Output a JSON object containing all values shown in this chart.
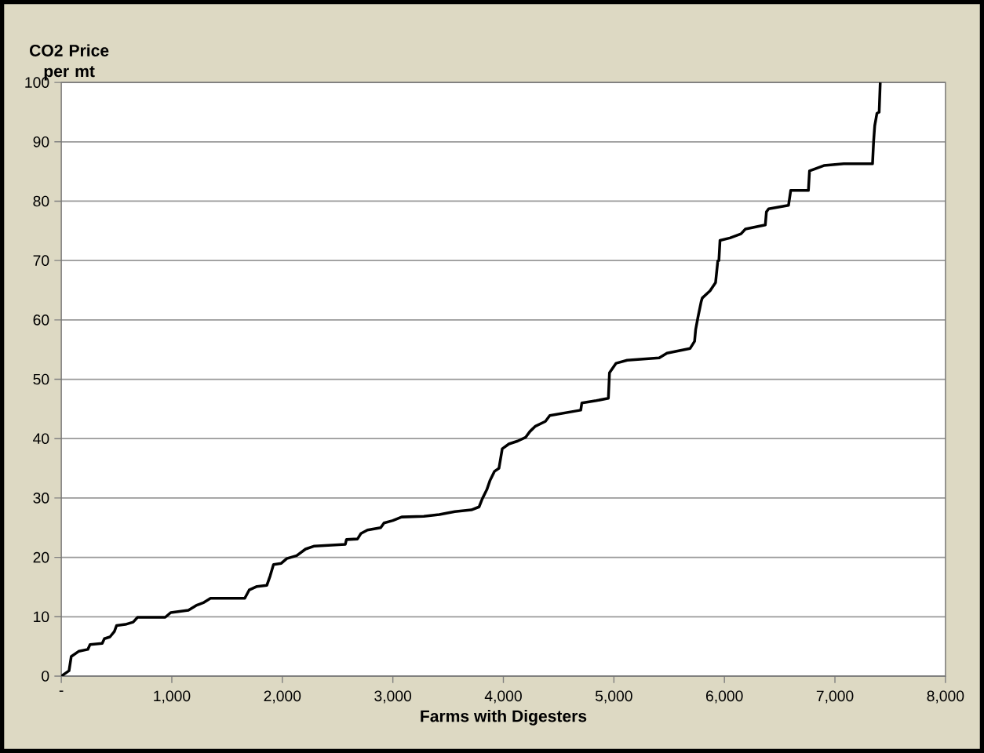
{
  "chart_data": {
    "type": "line",
    "xlabel": "Farms with Digesters",
    "ylabel": "CO2 Price per mt",
    "x": [
      0,
      70,
      90,
      160,
      240,
      260,
      370,
      390,
      440,
      480,
      500,
      580,
      650,
      690,
      940,
      990,
      1150,
      1220,
      1290,
      1350,
      1660,
      1700,
      1770,
      1860,
      1890,
      1920,
      1990,
      2040,
      2130,
      2210,
      2290,
      2570,
      2580,
      2680,
      2710,
      2770,
      2890,
      2920,
      3000,
      3080,
      3280,
      3420,
      3560,
      3710,
      3780,
      3810,
      3850,
      3880,
      3920,
      3960,
      3990,
      4050,
      4130,
      4200,
      4240,
      4290,
      4380,
      4420,
      4700,
      4710,
      4840,
      4950,
      4960,
      5020,
      5120,
      5410,
      5480,
      5690,
      5730,
      5740,
      5760,
      5790,
      5800,
      5870,
      5920,
      5940,
      5950,
      5960,
      6050,
      6150,
      6190,
      6370,
      6380,
      6400,
      6580,
      6600,
      6760,
      6770,
      6900,
      7080,
      7340,
      7350,
      7360,
      7380,
      7400,
      7410
    ],
    "series": [
      {
        "color": "#000000",
        "values": [
          0,
          0.9,
          3.3,
          4.2,
          4.5,
          5.3,
          5.5,
          6.3,
          6.6,
          7.5,
          8.5,
          8.7,
          9.1,
          9.9,
          9.9,
          10.7,
          11.1,
          11.9,
          12.4,
          13.1,
          13.1,
          14.5,
          15.1,
          15.3,
          16.9,
          18.8,
          19.0,
          19.8,
          20.3,
          21.4,
          21.9,
          22.2,
          23.0,
          23.1,
          24.0,
          24.6,
          25.0,
          25.8,
          26.2,
          26.8,
          26.9,
          27.2,
          27.7,
          28.0,
          28.5,
          29.9,
          31.4,
          33.0,
          34.5,
          35.0,
          38.3,
          39.1,
          39.6,
          40.2,
          41.2,
          42.1,
          42.9,
          43.9,
          44.8,
          46.0,
          46.4,
          46.8,
          51.1,
          52.7,
          53.2,
          53.6,
          54.4,
          55.2,
          56.4,
          58.4,
          60.4,
          63.1,
          63.7,
          64.9,
          66.3,
          69.9,
          70.0,
          73.4,
          73.8,
          74.5,
          75.3,
          76.0,
          78.2,
          78.7,
          79.3,
          81.8,
          81.8,
          85.1,
          86.0,
          86.3,
          86.3,
          90.1,
          92.7,
          94.8,
          95.0,
          100
        ]
      }
    ],
    "xlim": [
      0,
      8000
    ],
    "xticks": [
      {
        "value": 0,
        "label": "-"
      },
      {
        "value": 1000,
        "label": "1,000"
      },
      {
        "value": 2000,
        "label": "2,000"
      },
      {
        "value": 3000,
        "label": "3,000"
      },
      {
        "value": 4000,
        "label": "4,000"
      },
      {
        "value": 5000,
        "label": "5,000"
      },
      {
        "value": 6000,
        "label": "6,000"
      },
      {
        "value": 7000,
        "label": "7,000"
      },
      {
        "value": 8000,
        "label": "8,000"
      }
    ],
    "ylim": [
      0,
      100
    ],
    "yticks": [
      0,
      10,
      20,
      30,
      40,
      50,
      60,
      70,
      80,
      90,
      100
    ],
    "grid": "y",
    "marker": "none",
    "line_style": "solid"
  }
}
